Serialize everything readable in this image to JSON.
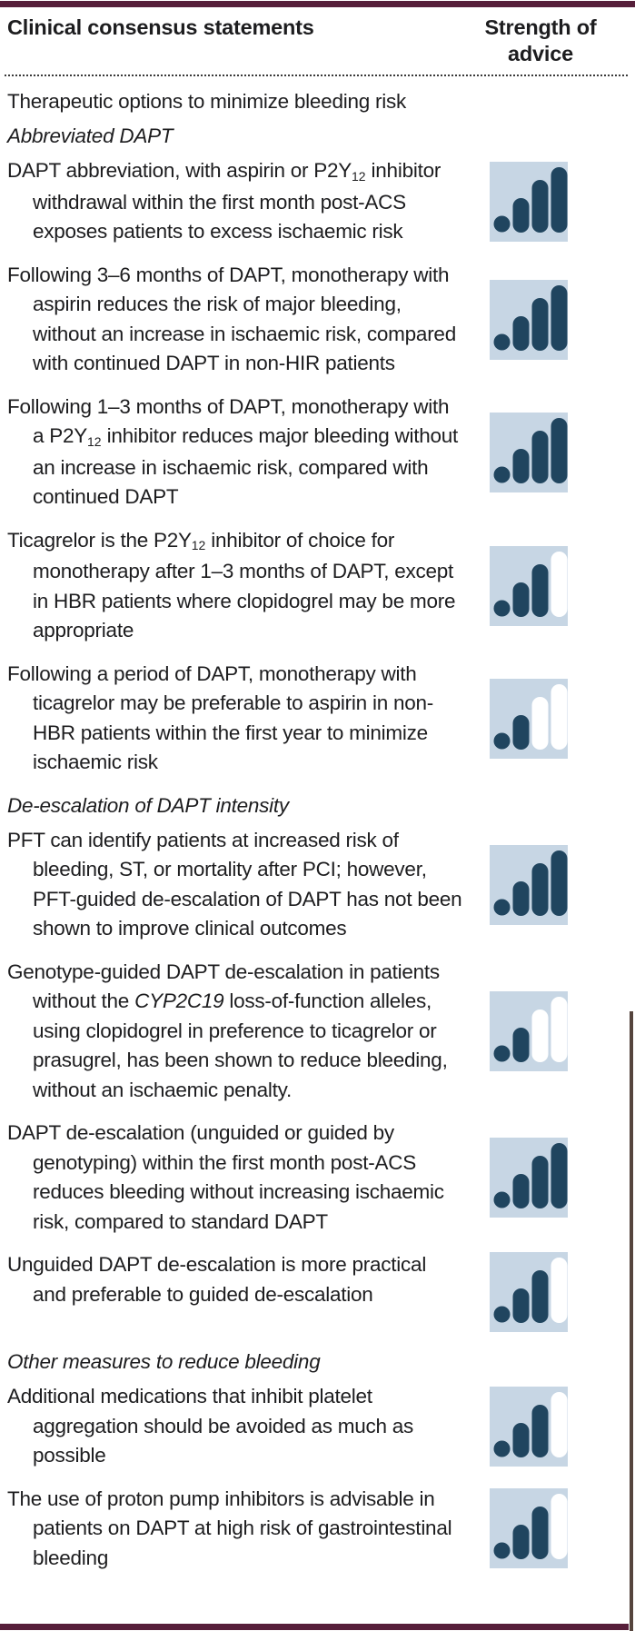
{
  "table": {
    "header": {
      "col1": "Clinical consensus statements",
      "col2": "Strength of advice"
    },
    "rows": [
      {
        "type": "section",
        "parts": [
          {
            "text": "Therapeutic options to minimize bleeding risk"
          }
        ]
      },
      {
        "type": "subsection",
        "parts": [
          {
            "text": "Abbreviated DAPT"
          }
        ]
      },
      {
        "type": "statement",
        "strength": 4,
        "strength_max": 4,
        "parts": [
          {
            "text": "DAPT abbreviation, with aspirin or P2Y"
          },
          {
            "text": "12",
            "sub": true
          },
          {
            "text": " inhibitor withdrawal within the first month post-ACS exposes patients to excess ischaemic risk"
          }
        ]
      },
      {
        "type": "statement",
        "strength": 4,
        "strength_max": 4,
        "parts": [
          {
            "text": "Following 3–6 months of DAPT, monotherapy with aspirin reduces the risk of major bleeding, without an increase in ischaemic risk, compared with continued DAPT in non-HIR patients"
          }
        ]
      },
      {
        "type": "statement",
        "strength": 4,
        "strength_max": 4,
        "parts": [
          {
            "text": "Following 1–3 months of DAPT, monotherapy with a P2Y"
          },
          {
            "text": "12",
            "sub": true
          },
          {
            "text": " inhibitor reduces major bleeding without an increase in ischaemic risk, compared with continued DAPT"
          }
        ]
      },
      {
        "type": "statement",
        "strength": 3,
        "strength_max": 4,
        "parts": [
          {
            "text": "Ticagrelor is the P2Y"
          },
          {
            "text": "12",
            "sub": true
          },
          {
            "text": " inhibitor of choice for monotherapy after 1–3 months of DAPT, except in HBR patients where clopidogrel may be more appropriate"
          }
        ]
      },
      {
        "type": "statement",
        "strength": 2,
        "strength_max": 4,
        "parts": [
          {
            "text": "Following a period of DAPT, monotherapy with ticagrelor may be preferable to aspirin in non-HBR patients within the first year to minimize ischaemic risk"
          }
        ]
      },
      {
        "type": "subsection",
        "parts": [
          {
            "text": "De-escalation of DAPT intensity"
          }
        ]
      },
      {
        "type": "statement",
        "strength": 4,
        "strength_max": 4,
        "parts": [
          {
            "text": "PFT can identify patients at increased risk of bleeding, ST, or mortality after PCI; however, PFT-guided de-escalation of DAPT has not been shown to improve clinical outcomes"
          }
        ]
      },
      {
        "type": "statement",
        "strength": 2,
        "strength_max": 4,
        "parts": [
          {
            "text": "Genotype-guided DAPT de-escalation in patients without the "
          },
          {
            "text": "CYP2C19",
            "italic": true
          },
          {
            "text": " loss-of-function alleles, using clopidogrel in preference to ticagrelor or prasugrel, has been shown to reduce bleeding, without an ischaemic penalty."
          }
        ]
      },
      {
        "type": "statement",
        "strength": 4,
        "strength_max": 4,
        "parts": [
          {
            "text": "DAPT de-escalation (unguided or guided by genotyping) within the first month post-ACS reduces bleeding without increasing ischaemic risk, compared to standard DAPT"
          }
        ]
      },
      {
        "type": "statement",
        "strength": 3,
        "strength_max": 4,
        "parts": [
          {
            "text": "Unguided DAPT de-escalation is more practical and preferable to guided de-escalation"
          }
        ]
      },
      {
        "type": "subsection",
        "parts": [
          {
            "text": "Other measures to reduce bleeding"
          }
        ]
      },
      {
        "type": "statement",
        "strength": 3,
        "strength_max": 4,
        "parts": [
          {
            "text": "Additional medications that inhibit platelet aggregation should be avoided as much as possible"
          }
        ]
      },
      {
        "type": "statement",
        "strength": 3,
        "strength_max": 4,
        "parts": [
          {
            "text": "The use of proton pump inhibitors is advisable in patients on DAPT at high risk of gastrointestinal bleeding"
          }
        ]
      }
    ]
  },
  "icon": {
    "name": "strength-of-advice-icon",
    "bg": "#c7d6e4",
    "filled": "#20455f",
    "empty": "#ffffff",
    "segments": 4
  },
  "colors": {
    "border_maroon": "#561f3a",
    "right_edge_line": "#55443d",
    "text": "#1d1d1f"
  }
}
